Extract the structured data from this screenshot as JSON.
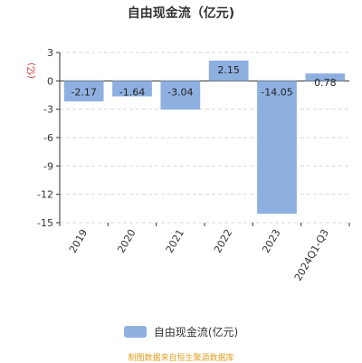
{
  "chart_data": {
    "type": "bar",
    "title": "自由现金流（亿元)",
    "ylabel": "(亿)",
    "categories": [
      "2019",
      "2020",
      "2021",
      "2022",
      "2023",
      "2024Q1-Q3"
    ],
    "series": [
      {
        "name": "自由现金流(亿元)",
        "values": [
          -2.17,
          -1.64,
          -3.04,
          2.15,
          -14.05,
          0.78
        ]
      }
    ],
    "data_labels": [
      "-2.17",
      "-1.64",
      "-3.04",
      "2.15",
      "-14.05",
      "0.78"
    ],
    "ylim": [
      -15,
      3
    ],
    "yticks": [
      3,
      0,
      -3,
      -6,
      -9,
      -12,
      -15
    ],
    "grid": true,
    "legend": "bottom"
  },
  "colors": {
    "bar": "#8eb0e0",
    "grid": "#d9d9d9",
    "axis": "#333333",
    "ylabel": "#cc3333",
    "source": "#e0a020"
  },
  "footer": {
    "source": "制图数据来自恒生聚源数据库"
  }
}
